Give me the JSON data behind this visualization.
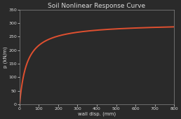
{
  "title": "Soil Nonlinear Response Curve",
  "xlabel": "wall disp. (mm)",
  "ylabel": "p (kN/m)",
  "xlim": [
    0,
    800
  ],
  "ylim": [
    0,
    3500
  ],
  "xticks": [
    0,
    100,
    200,
    300,
    400,
    500,
    600,
    700,
    800
  ],
  "yticks": [
    0,
    50,
    100,
    150,
    200,
    250,
    300,
    350
  ],
  "ytick_labels": [
    "0",
    "50",
    "100",
    "150",
    "200",
    "250",
    "300",
    "350"
  ],
  "line_color": "#e05030",
  "line_width": 1.4,
  "background_color": "#2a2a2a",
  "plot_bg_color": "#2a2a2a",
  "p_ult": 3000,
  "k_initial": 80,
  "title_fontsize": 6.5,
  "label_fontsize": 5.0,
  "tick_fontsize": 4.5,
  "title_color": "#dddddd",
  "tick_color": "#dddddd",
  "spine_color": "#888888"
}
